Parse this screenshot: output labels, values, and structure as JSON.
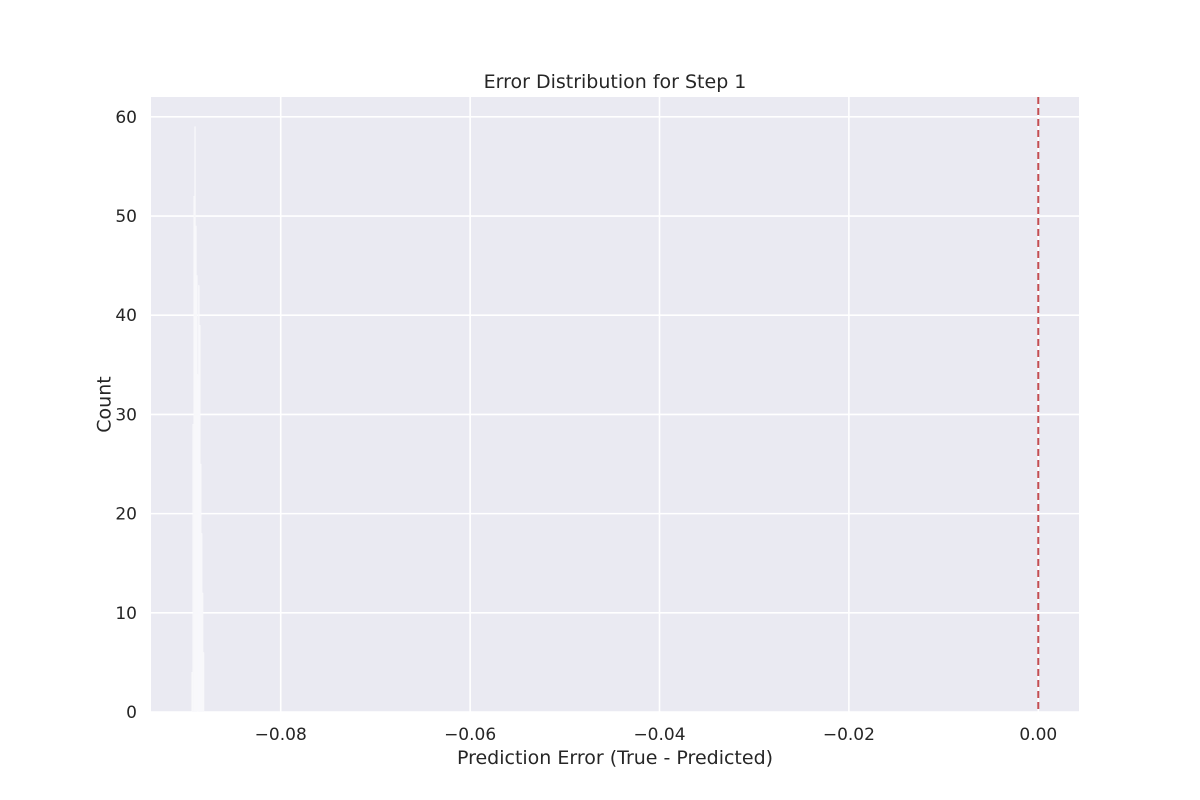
{
  "chart_data": {
    "type": "bar",
    "title": "Error Distribution for Step 1",
    "xlabel": "Prediction Error (True - Predicted)",
    "ylabel": "Count",
    "xlim": [
      -0.0937,
      0.0043
    ],
    "ylim": [
      0,
      62
    ],
    "x_ticks": [
      -0.08,
      -0.06,
      -0.04,
      -0.02,
      0.0
    ],
    "x_tick_labels": [
      "−0.08",
      "−0.06",
      "−0.04",
      "−0.02",
      "0.00"
    ],
    "y_ticks": [
      0,
      10,
      20,
      30,
      40,
      50,
      60
    ],
    "y_tick_labels": [
      "0",
      "10",
      "20",
      "30",
      "40",
      "50",
      "60"
    ],
    "grid": true,
    "reference_line": {
      "x": 0.0,
      "style": "dashed",
      "color": "#c44e52"
    },
    "bin_width": 0.0001,
    "bins": [
      {
        "x": -0.0894,
        "count": 4
      },
      {
        "x": -0.0893,
        "count": 29
      },
      {
        "x": -0.0892,
        "count": 52
      },
      {
        "x": -0.0891,
        "count": 59
      },
      {
        "x": -0.089,
        "count": 49
      },
      {
        "x": -0.0889,
        "count": 44
      },
      {
        "x": -0.0888,
        "count": 34
      },
      {
        "x": -0.0887,
        "count": 43
      },
      {
        "x": -0.0886,
        "count": 39
      },
      {
        "x": -0.0885,
        "count": 25
      },
      {
        "x": -0.0884,
        "count": 18
      },
      {
        "x": -0.0883,
        "count": 12
      },
      {
        "x": -0.0882,
        "count": 6
      }
    ],
    "colors": {
      "figure_bg": "#ffffff",
      "axes_bg": "#eaeaf2",
      "grid": "#ffffff",
      "bar_fill": "#f4f4f9",
      "text": "#262626"
    }
  }
}
